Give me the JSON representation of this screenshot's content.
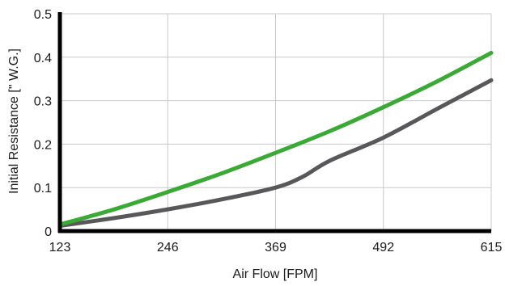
{
  "chart_data": {
    "type": "line",
    "xlabel": "Air Flow [FPM]",
    "ylabel": "Initial Resistance [\" W.G.]",
    "xlim": [
      123,
      615
    ],
    "ylim": [
      0,
      0.5
    ],
    "x_ticks": [
      "123",
      "246",
      "369",
      "492",
      "615"
    ],
    "y_ticks": [
      "0",
      "0.1",
      "0.2",
      "0.3",
      "0.4",
      "0.5"
    ],
    "grid": true,
    "series": [
      {
        "color": "#3aa935",
        "x": [
          123,
          185,
          246,
          308,
          369,
          431,
          492,
          554,
          615
        ],
        "y": [
          0.015,
          0.05,
          0.09,
          0.133,
          0.18,
          0.23,
          0.285,
          0.345,
          0.41
        ]
      },
      {
        "color": "#58585a",
        "x": [
          123,
          185,
          246,
          308,
          369,
          400,
          431,
          492,
          554,
          615
        ],
        "y": [
          0.012,
          0.03,
          0.05,
          0.073,
          0.1,
          0.125,
          0.162,
          0.215,
          0.282,
          0.347
        ]
      }
    ]
  }
}
